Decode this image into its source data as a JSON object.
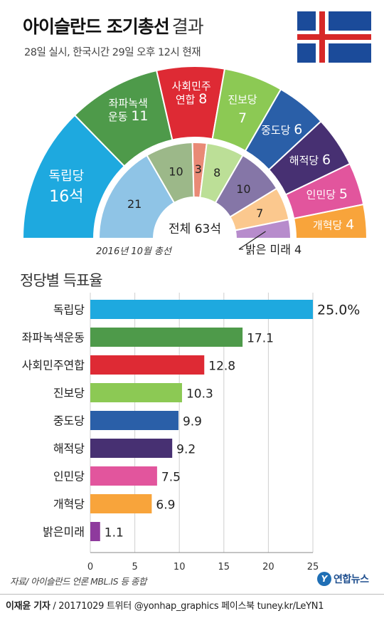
{
  "header": {
    "title_main": "아이슬란드 조기총선",
    "title_sub": "결과",
    "subtitle": "28일 실시, 한국시간 29일 오후 12시 현재"
  },
  "colors": {
    "flag_blue": "#1b4b9a",
    "flag_red": "#d72828",
    "flag_white": "#ffffff"
  },
  "chart_data": [
    {
      "type": "pie",
      "outer_ring": {
        "total_seats": 63,
        "parties": [
          {
            "name": "독립당",
            "seats": 16,
            "label": "16석",
            "color": "#1ea9df"
          },
          {
            "name": "좌파녹색 운동",
            "seats": 11,
            "label": "11",
            "color": "#4e9a4a"
          },
          {
            "name": "사회민주 연합",
            "seats": 8,
            "label": "8",
            "color": "#de2a34"
          },
          {
            "name": "진보당",
            "seats": 7,
            "label": "7",
            "color": "#8cc954"
          },
          {
            "name": "중도당",
            "seats": 6,
            "label": "6",
            "color": "#2a5fa8"
          },
          {
            "name": "해적당",
            "seats": 6,
            "label": "6",
            "color": "#473072"
          },
          {
            "name": "인민당",
            "seats": 5,
            "label": "5",
            "color": "#e2559d"
          },
          {
            "name": "개혁당",
            "seats": 4,
            "label": "4",
            "color": "#f8a43b"
          }
        ]
      },
      "inner_ring": {
        "caption": "2016년 10월 총선",
        "center_label": "전체 63석",
        "parties": [
          {
            "seats": 21,
            "label": "21",
            "color": "#8fc4e6"
          },
          {
            "seats": 10,
            "label": "10",
            "color": "#9cb889"
          },
          {
            "seats": 3,
            "label": "3",
            "color": "#e98a76"
          },
          {
            "seats": 8,
            "label": "8",
            "color": "#bcdf97"
          },
          {
            "seats": 10,
            "label": "10",
            "color": "#8576a7"
          },
          {
            "seats": 7,
            "label": "7",
            "color": "#fbc88e"
          },
          {
            "seats": 4,
            "label": "밝은 미래 4",
            "color": "#b78ccc"
          }
        ]
      }
    },
    {
      "type": "bar",
      "title": "정당별 득표율",
      "categories": [
        "독립당",
        "좌파녹색운동",
        "사회민주연합",
        "진보당",
        "중도당",
        "해적당",
        "인민당",
        "개혁당",
        "밝은미래"
      ],
      "values": [
        25.0,
        17.1,
        12.8,
        10.3,
        9.9,
        9.2,
        7.5,
        6.9,
        1.1
      ],
      "value_labels": [
        "25.0%",
        "17.1",
        "12.8",
        "10.3",
        "9.9",
        "9.2",
        "7.5",
        "6.9",
        "1.1"
      ],
      "colors": [
        "#1ea9df",
        "#4e9a4a",
        "#de2a34",
        "#8cc954",
        "#2a5fa8",
        "#473072",
        "#e2559d",
        "#f8a43b",
        "#8e3a9d"
      ],
      "xlim": [
        0,
        25
      ],
      "xticks": [
        "0",
        "5",
        "10",
        "15",
        "20",
        "25"
      ],
      "grid": true
    }
  ],
  "footer": {
    "source": "자료/ 아이슬란드 언론 MBL.IS 등 종합",
    "logo_mark": "Y",
    "logo_text": "연합뉴스",
    "author": "이재윤 기자",
    "credits": " / 20171029   트위터 @yonhap_graphics  페이스북 tuney.kr/LeYN1"
  }
}
